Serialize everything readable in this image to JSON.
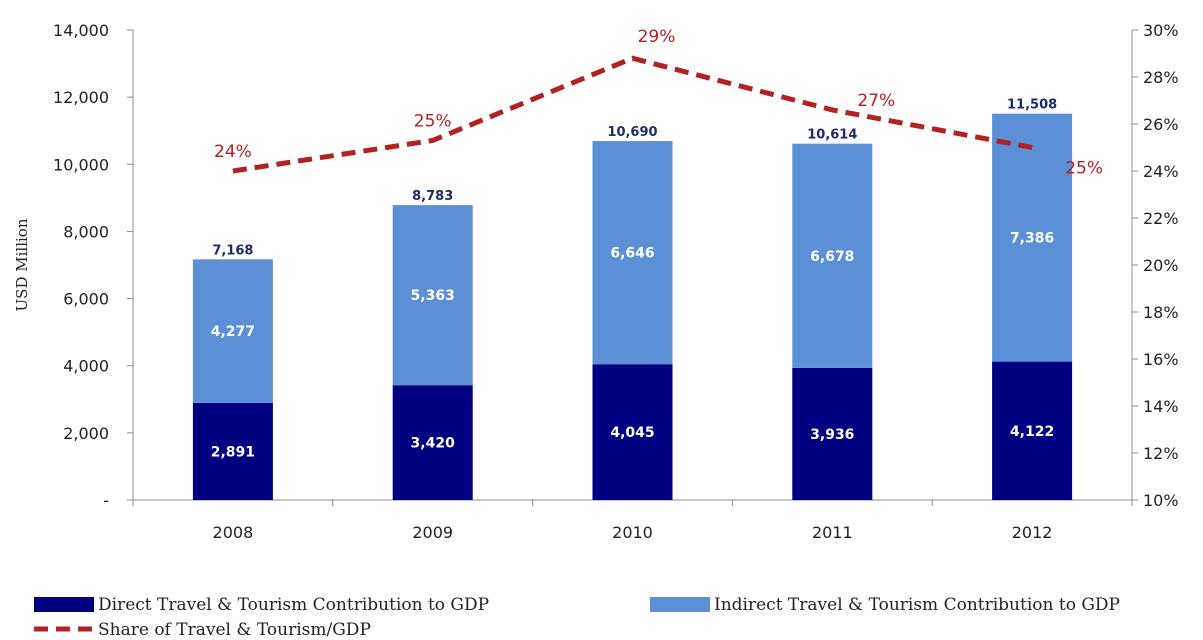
{
  "chart_data": {
    "type": "bar",
    "categories": [
      "2008",
      "2009",
      "2010",
      "2011",
      "2012"
    ],
    "series": [
      {
        "name": "Direct Travel & Tourism Contribution to GDP",
        "color": "#000080",
        "values": [
          2891,
          3420,
          4045,
          3936,
          4122
        ],
        "labels": [
          "2,891",
          "3,420",
          "4,045",
          "3,936",
          "4,122"
        ]
      },
      {
        "name": "Indirect Travel & Tourism Contribution to GDP",
        "color": "#5b8fd6",
        "values": [
          4277,
          5363,
          6646,
          6678,
          7386
        ],
        "labels": [
          "4,277",
          "5,363",
          "6,646",
          "6,678",
          "7,386"
        ]
      },
      {
        "name": "Share of Travel & Tourism/GDP",
        "type": "line",
        "axis": "right",
        "color": "#b22222",
        "style": "dashed",
        "values": [
          24,
          25.3,
          28.8,
          26.6,
          25
        ],
        "labels": [
          "24%",
          "25%",
          "29%",
          "27%",
          "25%"
        ]
      }
    ],
    "totals": [
      7168,
      8783,
      10690,
      10614,
      11508
    ],
    "total_labels": [
      "7,168",
      "8,783",
      "10,690",
      "10,614",
      "11,508"
    ],
    "ylabel": "USD Million",
    "ylim": [
      0,
      14000
    ],
    "y_ticks": [
      0,
      2000,
      4000,
      6000,
      8000,
      10000,
      12000,
      14000
    ],
    "y_tick_labels": [
      "-",
      "2,000",
      "4,000",
      "6,000",
      "8,000",
      "10,000",
      "12,000",
      "14,000"
    ],
    "y2lim": [
      10,
      30
    ],
    "y2_ticks": [
      10,
      12,
      14,
      16,
      18,
      20,
      22,
      24,
      26,
      28,
      30
    ],
    "y2_tick_labels": [
      "10%",
      "12%",
      "14%",
      "16%",
      "18%",
      "20%",
      "22%",
      "24%",
      "26%",
      "28%",
      "30%"
    ],
    "grid": false,
    "legend_position": "bottom"
  }
}
